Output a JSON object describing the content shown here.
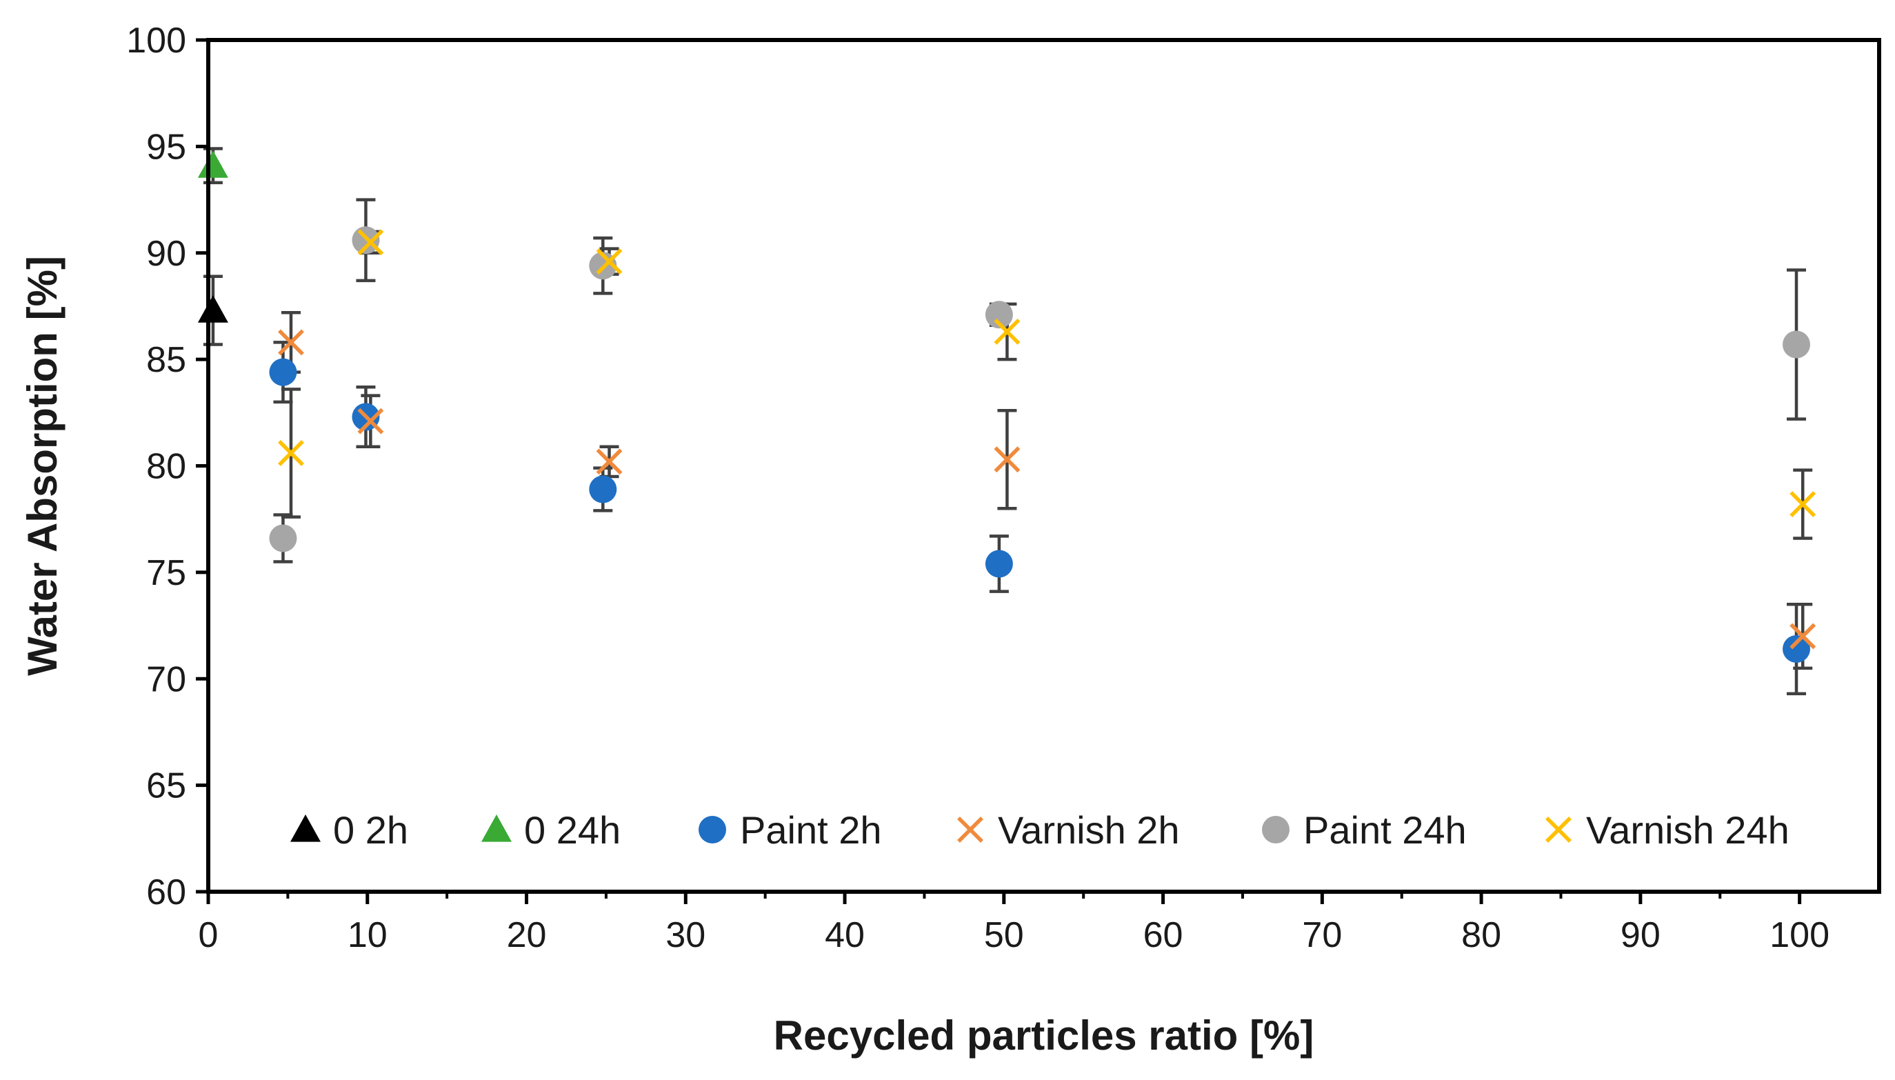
{
  "chart_data": {
    "type": "scatter",
    "xlabel": "Recycled particles ratio [%]",
    "ylabel": "Water Absorption [%]",
    "xlim": [
      0,
      105
    ],
    "ylim": [
      60,
      100
    ],
    "xticks": [
      0,
      10,
      20,
      30,
      40,
      50,
      60,
      70,
      80,
      90,
      100
    ],
    "yticks": [
      60,
      65,
      70,
      75,
      80,
      85,
      90,
      95,
      100
    ],
    "legend_position": "bottom-inside",
    "grid": false,
    "series": [
      {
        "name": "0 2h",
        "marker": "triangle",
        "color": "#000000",
        "points": [
          {
            "x": 0.3,
            "y": 87.3,
            "err": 1.6
          }
        ]
      },
      {
        "name": "0 24h",
        "marker": "triangle",
        "color": "#3aaa35",
        "points": [
          {
            "x": 0.3,
            "y": 94.1,
            "err": 0.8
          }
        ]
      },
      {
        "name": "Paint 2h",
        "marker": "circle",
        "color": "#1f6fc5",
        "points": [
          {
            "x": 4.7,
            "y": 84.4,
            "err": 1.4
          },
          {
            "x": 9.9,
            "y": 82.3,
            "err": 1.4
          },
          {
            "x": 24.8,
            "y": 78.9,
            "err": 1.0
          },
          {
            "x": 49.7,
            "y": 75.4,
            "err": 1.3
          },
          {
            "x": 99.8,
            "y": 71.4,
            "err": 2.1
          }
        ]
      },
      {
        "name": "Varnish 2h",
        "marker": "x",
        "color": "#f08a3c",
        "points": [
          {
            "x": 5.2,
            "y": 85.8,
            "err": 1.4
          },
          {
            "x": 10.2,
            "y": 82.1,
            "err": 1.2
          },
          {
            "x": 25.2,
            "y": 80.2,
            "err": 0.7
          },
          {
            "x": 50.2,
            "y": 80.3,
            "err": 2.3
          },
          {
            "x": 100.2,
            "y": 72.0,
            "err": 1.5
          }
        ]
      },
      {
        "name": "Paint 24h",
        "marker": "circle",
        "color": "#a6a6a6",
        "points": [
          {
            "x": 4.7,
            "y": 76.6,
            "err": 1.1
          },
          {
            "x": 9.9,
            "y": 90.6,
            "err": 1.9
          },
          {
            "x": 24.8,
            "y": 89.4,
            "err": 1.3
          },
          {
            "x": 49.7,
            "y": 87.1,
            "err": 0.5
          },
          {
            "x": 99.8,
            "y": 85.7,
            "err": 3.5
          }
        ]
      },
      {
        "name": "Varnish 24h",
        "marker": "x",
        "color": "#ffc000",
        "points": [
          {
            "x": 5.2,
            "y": 80.6,
            "err": 3.0
          },
          {
            "x": 10.2,
            "y": 90.5,
            "err": 0.5
          },
          {
            "x": 25.2,
            "y": 89.6,
            "err": 0.6
          },
          {
            "x": 50.2,
            "y": 86.3,
            "err": 1.3
          },
          {
            "x": 100.2,
            "y": 78.2,
            "err": 1.6
          }
        ]
      }
    ]
  }
}
